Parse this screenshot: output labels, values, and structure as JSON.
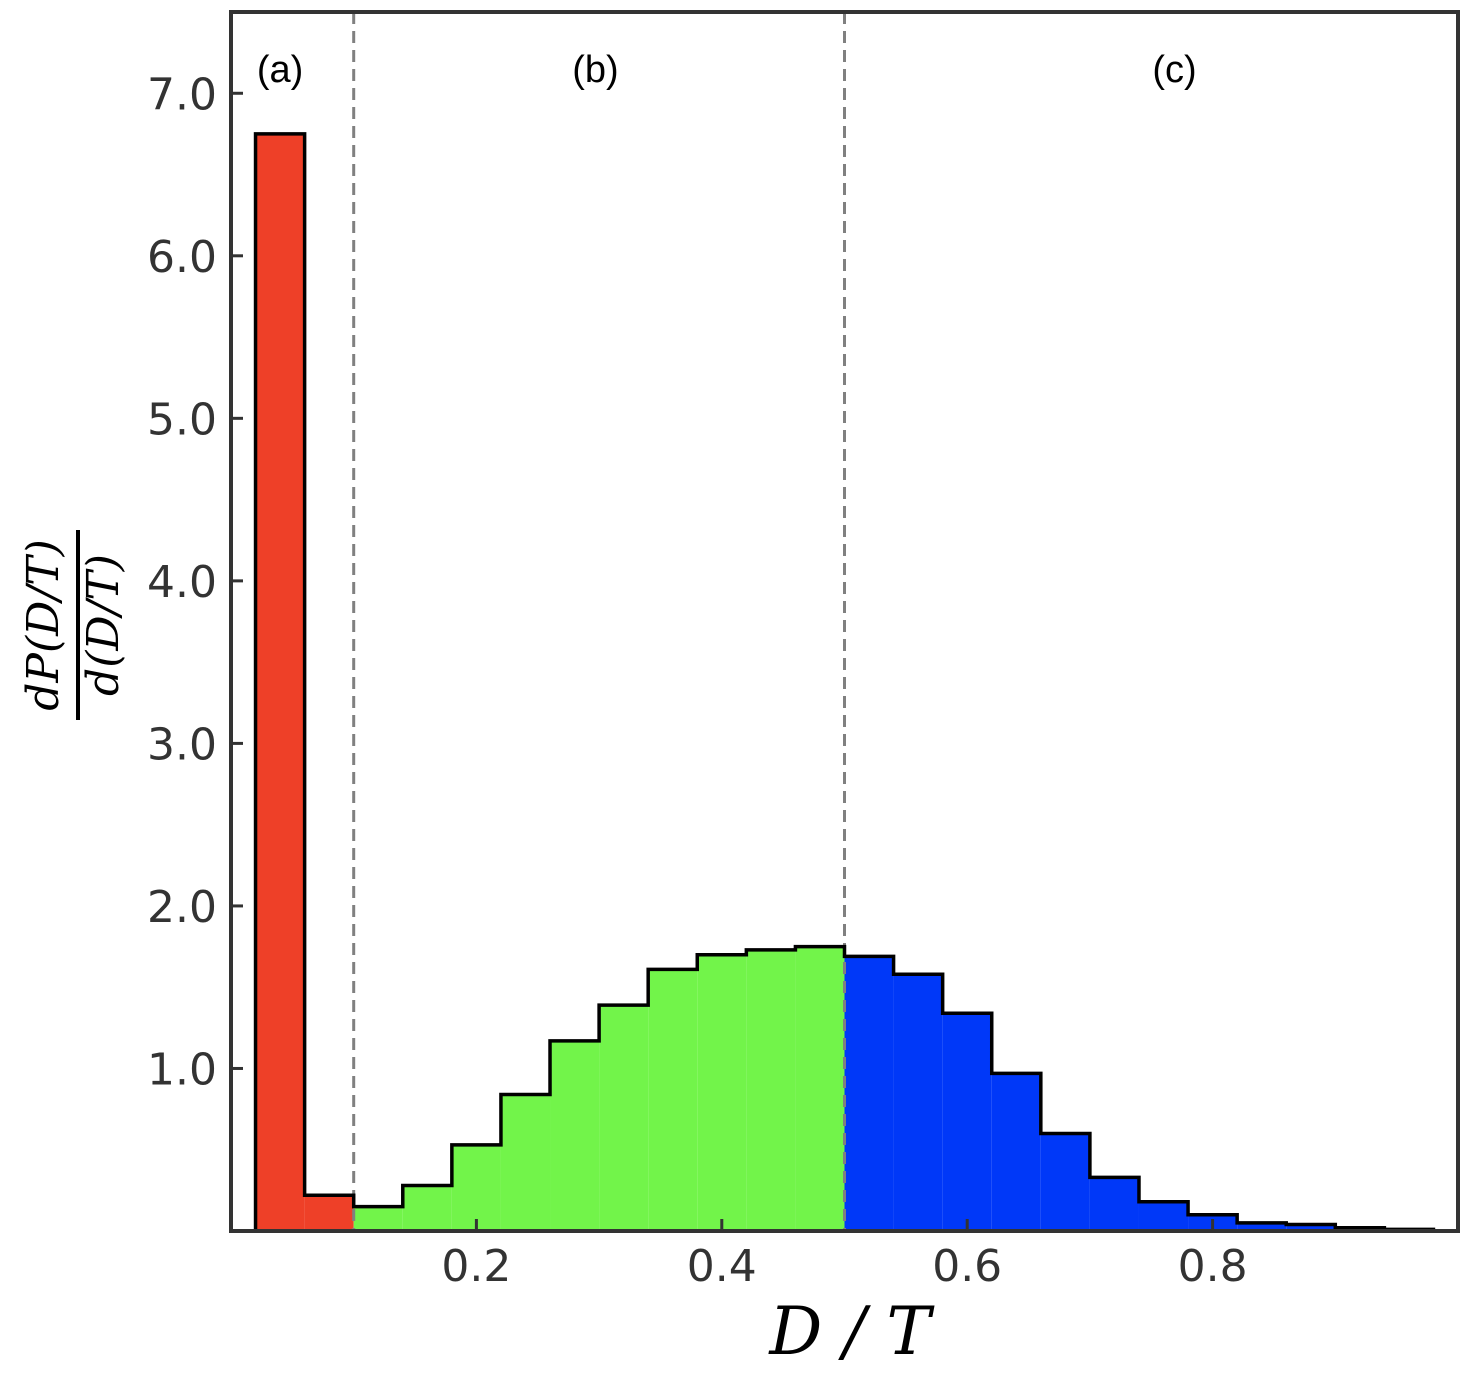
{
  "chart_data": {
    "type": "bar",
    "subtype": "histogram",
    "title": "",
    "xlabel": "D / T",
    "ylabel_numerator": "dP(D/T)",
    "ylabel_denominator": "d(D/T)",
    "xlim": [
      0.0,
      1.0
    ],
    "ylim": [
      0.0,
      7.5
    ],
    "xticks": [
      0.2,
      0.4,
      0.6,
      0.8
    ],
    "xtick_labels": [
      "0.2",
      "0.4",
      "0.6",
      "0.8"
    ],
    "yticks": [
      1.0,
      2.0,
      3.0,
      4.0,
      5.0,
      6.0,
      7.0
    ],
    "ytick_labels": [
      "1.0",
      "2.0",
      "3.0",
      "4.0",
      "5.0",
      "6.0",
      "7.0"
    ],
    "grid": false,
    "bin_width": 0.04,
    "bins": [
      {
        "x0": 0.02,
        "x1": 0.06,
        "value": 6.75,
        "region": "a"
      },
      {
        "x0": 0.06,
        "x1": 0.1,
        "value": 0.22,
        "region": "a"
      },
      {
        "x0": 0.1,
        "x1": 0.14,
        "value": 0.15,
        "region": "b"
      },
      {
        "x0": 0.14,
        "x1": 0.18,
        "value": 0.28,
        "region": "b"
      },
      {
        "x0": 0.18,
        "x1": 0.22,
        "value": 0.53,
        "region": "b"
      },
      {
        "x0": 0.22,
        "x1": 0.26,
        "value": 0.84,
        "region": "b"
      },
      {
        "x0": 0.26,
        "x1": 0.3,
        "value": 1.17,
        "region": "b"
      },
      {
        "x0": 0.3,
        "x1": 0.34,
        "value": 1.39,
        "region": "b"
      },
      {
        "x0": 0.34,
        "x1": 0.38,
        "value": 1.61,
        "region": "b"
      },
      {
        "x0": 0.38,
        "x1": 0.42,
        "value": 1.7,
        "region": "b"
      },
      {
        "x0": 0.42,
        "x1": 0.46,
        "value": 1.73,
        "region": "b"
      },
      {
        "x0": 0.46,
        "x1": 0.5,
        "value": 1.75,
        "region": "b"
      },
      {
        "x0": 0.5,
        "x1": 0.54,
        "value": 1.69,
        "region": "c"
      },
      {
        "x0": 0.54,
        "x1": 0.58,
        "value": 1.58,
        "region": "c"
      },
      {
        "x0": 0.58,
        "x1": 0.62,
        "value": 1.34,
        "region": "c"
      },
      {
        "x0": 0.62,
        "x1": 0.66,
        "value": 0.97,
        "region": "c"
      },
      {
        "x0": 0.66,
        "x1": 0.7,
        "value": 0.6,
        "region": "c"
      },
      {
        "x0": 0.7,
        "x1": 0.74,
        "value": 0.33,
        "region": "c"
      },
      {
        "x0": 0.74,
        "x1": 0.78,
        "value": 0.18,
        "region": "c"
      },
      {
        "x0": 0.78,
        "x1": 0.82,
        "value": 0.1,
        "region": "c"
      },
      {
        "x0": 0.82,
        "x1": 0.86,
        "value": 0.05,
        "region": "c"
      },
      {
        "x0": 0.86,
        "x1": 0.9,
        "value": 0.04,
        "region": "c"
      },
      {
        "x0": 0.9,
        "x1": 0.94,
        "value": 0.02,
        "region": "c"
      },
      {
        "x0": 0.94,
        "x1": 0.98,
        "value": 0.01,
        "region": "c"
      }
    ],
    "regions": [
      {
        "id": "a",
        "label": "(a)",
        "color": "#ee4028",
        "x_min": 0.0,
        "x_max": 0.1
      },
      {
        "id": "b",
        "label": "(b)",
        "color": "#72f44a",
        "x_min": 0.1,
        "x_max": 0.5
      },
      {
        "id": "c",
        "label": "(c)",
        "color": "#0038f8",
        "x_min": 0.5,
        "x_max": 1.0
      }
    ],
    "dividers": [
      0.1,
      0.5
    ],
    "divider_style": "dashed",
    "divider_color": "#808080",
    "outline_color": "#000000",
    "axes_color": "#333333"
  }
}
